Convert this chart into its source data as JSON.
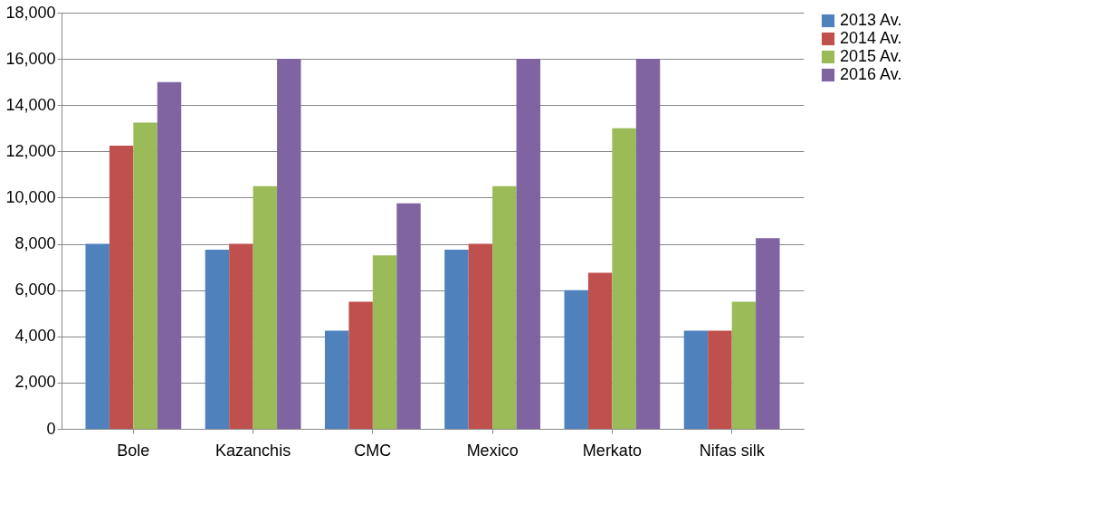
{
  "chart_data": {
    "type": "bar",
    "categories": [
      "Bole",
      "Kazanchis",
      "CMC",
      "Mexico",
      "Merkato",
      "Nifas silk"
    ],
    "series": [
      {
        "name": "2013 Av.",
        "color": "#4f81bd",
        "values": [
          8000,
          7750,
          4250,
          7750,
          6000,
          4250
        ]
      },
      {
        "name": "2014 Av.",
        "color": "#c0504d",
        "values": [
          12250,
          8000,
          5500,
          8000,
          6750,
          4250
        ]
      },
      {
        "name": "2015 Av.",
        "color": "#9bbb59",
        "values": [
          13250,
          10500,
          7500,
          10500,
          13000,
          5500
        ]
      },
      {
        "name": "2016 Av.",
        "color": "#8064a2",
        "values": [
          15000,
          16000,
          9750,
          16000,
          16000,
          8250
        ]
      }
    ],
    "ylim": [
      0,
      18000
    ],
    "yticks": [
      0,
      {
        "value": 2000,
        "label": "2,000"
      },
      {
        "value": 4000,
        "label": "4,000"
      },
      {
        "value": 6000,
        "label": "6,000"
      },
      {
        "value": 8000,
        "label": "8,000"
      },
      {
        "value": 10000,
        "label": "10,000"
      },
      {
        "value": 12000,
        "label": "12,000"
      },
      {
        "value": 14000,
        "label": "14,000"
      },
      {
        "value": 16000,
        "label": "16,000"
      },
      {
        "value": 18000,
        "label": "18,000"
      }
    ],
    "grid": "y",
    "legend": "right"
  }
}
